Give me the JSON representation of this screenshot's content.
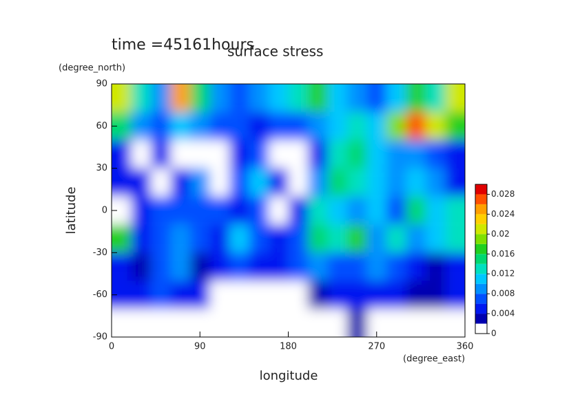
{
  "chart_data": {
    "type": "heatmap",
    "title": "surface stress",
    "subtitle": "time =45161hours",
    "x_label": "longitude",
    "x_unit": "(degree_east)",
    "y_label": "latitude",
    "y_unit": "(degree_north)",
    "x": [
      10,
      30,
      50,
      70,
      90,
      110,
      130,
      150,
      170,
      190,
      210,
      230,
      250,
      270,
      290,
      310,
      330,
      350
    ],
    "y": [
      80,
      60,
      40,
      20,
      0,
      -20,
      -40,
      -60,
      -80
    ],
    "z": [
      [
        0.02,
        0.012,
        0.008,
        0.024,
        0.014,
        0.008,
        0.006,
        0.008,
        0.01,
        0.012,
        0.016,
        0.01,
        0.008,
        0.006,
        0.01,
        0.016,
        0.012,
        0.02
      ],
      [
        0.014,
        0.008,
        0.006,
        0.01,
        0.008,
        0.006,
        0.006,
        0.004,
        0.006,
        0.006,
        0.008,
        0.01,
        0.012,
        0.01,
        0.018,
        0.026,
        0.02,
        0.016
      ],
      [
        0.004,
        0,
        0.004,
        0,
        0,
        0,
        0.004,
        0.006,
        0,
        0,
        0.004,
        0.012,
        0.014,
        0.01,
        0.008,
        0.008,
        0.006,
        0.004
      ],
      [
        0.004,
        0.004,
        0,
        0.004,
        0.008,
        0,
        0.006,
        0.01,
        0.004,
        0,
        0.008,
        0.014,
        0.012,
        0.01,
        0.008,
        0.01,
        0.008,
        0.004
      ],
      [
        0,
        0.004,
        0.006,
        0.006,
        0.006,
        0.006,
        0.004,
        0.006,
        0,
        0.004,
        0.012,
        0.01,
        0.008,
        0.01,
        0.006,
        0.014,
        0.01,
        0.012
      ],
      [
        0.016,
        0.004,
        0.006,
        0.008,
        0.006,
        0.004,
        0.01,
        0.006,
        0.004,
        0.006,
        0.014,
        0.012,
        0.016,
        0.008,
        0.012,
        0.008,
        0.01,
        0.012
      ],
      [
        0.004,
        0.002,
        0.006,
        0.008,
        0.002,
        0.004,
        0.006,
        0.004,
        0.004,
        0.006,
        0.008,
        0.006,
        0.006,
        0.008,
        0.006,
        0.004,
        0.002,
        0.004
      ],
      [
        0.004,
        0.004,
        0.006,
        0.004,
        0.004,
        0,
        0,
        0,
        0,
        0,
        0.002,
        0.004,
        0.004,
        0.004,
        0.004,
        0.002,
        0.002,
        0.004
      ],
      [
        0,
        0,
        0,
        0,
        0,
        0,
        0,
        0,
        0,
        0,
        0,
        0,
        0.002,
        0,
        0,
        0,
        0,
        0
      ]
    ],
    "xlim": [
      0,
      360
    ],
    "xticks": [
      0,
      90,
      180,
      270,
      360
    ],
    "ylim": [
      -90,
      90
    ],
    "yticks": [
      -90,
      -60,
      -30,
      0,
      30,
      60,
      90
    ],
    "clim": [
      0,
      0.03
    ],
    "cticks": [
      0,
      0.004,
      0.008,
      0.012,
      0.016,
      0.02,
      0.024,
      0.028
    ],
    "colors": [
      "#ffffff",
      "#0000b0",
      "#0018f0",
      "#0050ff",
      "#0090ff",
      "#00c8ff",
      "#00e0c0",
      "#00d870",
      "#20d020",
      "#80e000",
      "#d0e800",
      "#ffd000",
      "#ffa000",
      "#ff5000",
      "#e00000"
    ]
  }
}
